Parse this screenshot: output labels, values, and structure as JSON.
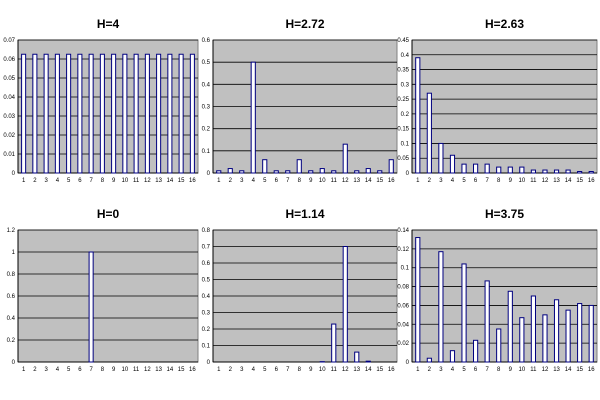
{
  "chart_data": [
    {
      "type": "bar",
      "title": "H=4",
      "categories": [
        "1",
        "2",
        "3",
        "4",
        "5",
        "6",
        "7",
        "8",
        "9",
        "10",
        "11",
        "12",
        "13",
        "14",
        "15",
        "16"
      ],
      "values": [
        0.0625,
        0.0625,
        0.0625,
        0.0625,
        0.0625,
        0.0625,
        0.0625,
        0.0625,
        0.0625,
        0.0625,
        0.0625,
        0.0625,
        0.0625,
        0.0625,
        0.0625,
        0.0625
      ],
      "ylim": [
        0,
        0.07
      ],
      "yticks": [
        "0",
        "0.01",
        "0.02",
        "0.03",
        "0.04",
        "0.05",
        "0.06",
        "0.07"
      ],
      "grid": true
    },
    {
      "type": "bar",
      "title": "H=2.72",
      "categories": [
        "1",
        "2",
        "3",
        "4",
        "5",
        "6",
        "7",
        "8",
        "9",
        "10",
        "11",
        "12",
        "13",
        "14",
        "15",
        "16"
      ],
      "values": [
        0.01,
        0.02,
        0.01,
        0.5,
        0.06,
        0.01,
        0.01,
        0.06,
        0.01,
        0.02,
        0.01,
        0.13,
        0.01,
        0.02,
        0.01,
        0.06
      ],
      "ylim": [
        0,
        0.6
      ],
      "yticks": [
        "0",
        "0.1",
        "0.2",
        "0.3",
        "0.4",
        "0.5",
        "0.6"
      ],
      "grid": true
    },
    {
      "type": "bar",
      "title": "H=2.63",
      "categories": [
        "1",
        "2",
        "3",
        "4",
        "5",
        "6",
        "7",
        "8",
        "9",
        "10",
        "11",
        "12",
        "13",
        "14",
        "15",
        "16"
      ],
      "values": [
        0.39,
        0.27,
        0.1,
        0.06,
        0.03,
        0.03,
        0.03,
        0.02,
        0.02,
        0.02,
        0.01,
        0.01,
        0.01,
        0.01,
        0.005,
        0.005
      ],
      "ylim": [
        0,
        0.45
      ],
      "yticks": [
        "0",
        "0.05",
        "0.1",
        "0.15",
        "0.2",
        "0.25",
        "0.3",
        "0.35",
        "0.4",
        "0.45"
      ],
      "grid": true
    },
    {
      "type": "bar",
      "title": "H=0",
      "categories": [
        "1",
        "2",
        "3",
        "4",
        "5",
        "6",
        "7",
        "8",
        "9",
        "10",
        "11",
        "12",
        "13",
        "14",
        "15",
        "16"
      ],
      "values": [
        0,
        0,
        0,
        0,
        0,
        0,
        1,
        0,
        0,
        0,
        0,
        0,
        0,
        0,
        0,
        0
      ],
      "ylim": [
        0,
        1.2
      ],
      "yticks": [
        "0",
        "0.2",
        "0.4",
        "0.6",
        "0.8",
        "1",
        "1.2"
      ],
      "grid": true
    },
    {
      "type": "bar",
      "title": "H=1.14",
      "categories": [
        "1",
        "2",
        "3",
        "4",
        "5",
        "6",
        "7",
        "8",
        "9",
        "10",
        "11",
        "12",
        "13",
        "14",
        "15",
        "16"
      ],
      "values": [
        0,
        0,
        0,
        0,
        0,
        0,
        0,
        0,
        0,
        0.002,
        0.23,
        0.7,
        0.06,
        0.005,
        0,
        0
      ],
      "ylim": [
        0,
        0.8
      ],
      "yticks": [
        "0",
        "0.1",
        "0.2",
        "0.3",
        "0.4",
        "0.5",
        "0.6",
        "0.7",
        "0.8"
      ],
      "grid": true
    },
    {
      "type": "bar",
      "title": "H=3.75",
      "categories": [
        "1",
        "2",
        "3",
        "4",
        "5",
        "6",
        "7",
        "8",
        "9",
        "10",
        "11",
        "12",
        "13",
        "14",
        "15",
        "16"
      ],
      "values": [
        0.132,
        0.004,
        0.117,
        0.012,
        0.104,
        0.023,
        0.086,
        0.035,
        0.075,
        0.047,
        0.07,
        0.05,
        0.066,
        0.055,
        0.062,
        0.06
      ],
      "ylim": [
        0,
        0.14
      ],
      "yticks": [
        "0",
        "0.02",
        "0.04",
        "0.06",
        "0.08",
        "0.1",
        "0.12",
        "0.14"
      ],
      "grid": true
    }
  ],
  "colors": {
    "plot_background": "#c0c0c0",
    "bar_fill": "#ffffff",
    "bar_stroke": "#000080",
    "gridline": "#000000"
  }
}
